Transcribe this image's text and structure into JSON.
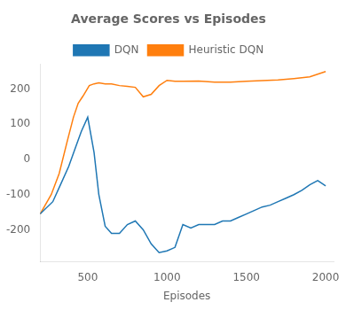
{
  "chart_data": {
    "type": "line",
    "title": "Average Scores vs Episodes",
    "xlabel": "Episodes",
    "series": [
      {
        "name": "DQN",
        "color": "#1f77b4",
        "x": [
          200,
          280,
          330,
          380,
          420,
          460,
          500,
          540,
          570,
          610,
          650,
          700,
          750,
          800,
          850,
          900,
          950,
          1000,
          1050,
          1100,
          1150,
          1200,
          1250,
          1300,
          1350,
          1400,
          1450,
          1500,
          1550,
          1600,
          1650,
          1700,
          1750,
          1800,
          1850,
          1900,
          1950,
          2000
        ],
        "values": [
          -155,
          -120,
          -70,
          -20,
          30,
          80,
          120,
          20,
          -100,
          -190,
          -210,
          -210,
          -185,
          -175,
          -200,
          -240,
          -265,
          -260,
          -250,
          -185,
          -195,
          -185,
          -185,
          -185,
          -175,
          -175,
          -165,
          -155,
          -145,
          -135,
          -130,
          -120,
          -110,
          -100,
          -88,
          -72,
          -60,
          -75
        ]
      },
      {
        "name": "Heuristic DQN",
        "color": "#ff7f0e",
        "x": [
          200,
          270,
          320,
          370,
          410,
          440,
          470,
          490,
          510,
          540,
          570,
          610,
          650,
          700,
          750,
          800,
          850,
          900,
          950,
          1000,
          1050,
          1100,
          1200,
          1300,
          1400,
          1500,
          1600,
          1700,
          1800,
          1900,
          2000
        ],
        "values": [
          -155,
          -100,
          -40,
          50,
          120,
          160,
          180,
          195,
          210,
          215,
          218,
          215,
          215,
          210,
          208,
          205,
          178,
          185,
          210,
          225,
          222,
          222,
          223,
          220,
          220,
          222,
          224,
          226,
          230,
          235,
          250
        ]
      }
    ],
    "xlim": [
      200,
      2050
    ],
    "ylim": [
      -290,
      270
    ],
    "xticks": [
      500,
      1000,
      1500,
      2000
    ],
    "yticks": [
      -200,
      -100,
      0,
      100,
      200
    ],
    "grid": false,
    "legend": "top"
  }
}
